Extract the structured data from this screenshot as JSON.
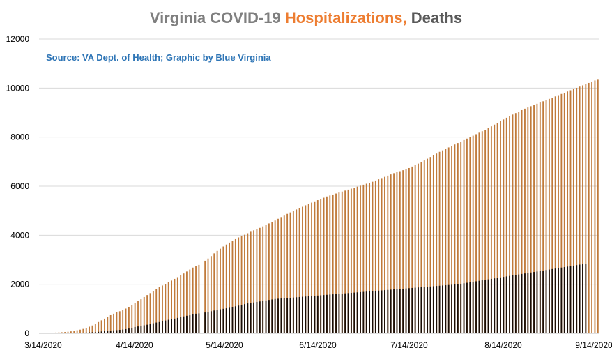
{
  "chart_data": {
    "type": "bar",
    "title_parts": [
      {
        "text": "Virginia COVID-19 ",
        "color": "#7f7f7f"
      },
      {
        "text": "Hospitalizations,",
        "color": "#ed7d31"
      },
      {
        "text": " Deaths",
        "color": "#595959"
      }
    ],
    "subtitle": "Source: VA Dept. of Health; Graphic by Blue Virginia",
    "subtitle_color": "#2e75b6",
    "ylim": [
      0,
      12000
    ],
    "yticks": [
      0,
      2000,
      4000,
      6000,
      8000,
      10000,
      12000
    ],
    "grid": true,
    "x_start": "3/14/2020",
    "x_end": "9/14/2020",
    "xtick_labels": [
      "3/14/2020",
      "4/14/2020",
      "5/14/2020",
      "6/14/2020",
      "7/14/2020",
      "8/14/2020",
      "9/14/2020"
    ],
    "series": [
      {
        "name": "Hospitalizations",
        "color": "#c07a3a",
        "values": [
          17,
          19,
          22,
          25,
          28,
          32,
          38,
          45,
          55,
          65,
          80,
          100,
          125,
          150,
          180,
          220,
          270,
          320,
          390,
          460,
          530,
          600,
          680,
          740,
          800,
          860,
          900,
          950,
          1010,
          1080,
          1150,
          1230,
          1310,
          1390,
          1480,
          1560,
          1640,
          1720,
          1800,
          1880,
          1950,
          2010,
          2080,
          2150,
          2220,
          2290,
          2360,
          2440,
          2520,
          2600,
          2680,
          2740,
          2790,
          0,
          2960,
          3050,
          3150,
          3260,
          3360,
          3450,
          3540,
          3620,
          3700,
          3770,
          3840,
          3910,
          3960,
          4020,
          4080,
          4140,
          4200,
          4250,
          4300,
          4360,
          4420,
          4480,
          4540,
          4600,
          4670,
          4740,
          4800,
          4870,
          4930,
          4990,
          5050,
          5110,
          5160,
          5220,
          5280,
          5330,
          5380,
          5430,
          5480,
          5530,
          5580,
          5620,
          5660,
          5700,
          5740,
          5780,
          5820,
          5860,
          5900,
          5940,
          5980,
          6020,
          6060,
          6100,
          6140,
          6180,
          6230,
          6280,
          6330,
          6380,
          6430,
          6480,
          6530,
          6570,
          6610,
          6650,
          6690,
          6740,
          6800,
          6860,
          6920,
          6980,
          7050,
          7120,
          7190,
          7260,
          7330,
          7400,
          7460,
          7520,
          7580,
          7640,
          7700,
          7760,
          7820,
          7880,
          7940,
          8000,
          8060,
          8120,
          8180,
          8240,
          8300,
          8370,
          8440,
          8510,
          8580,
          8650,
          8720,
          8790,
          8860,
          8920,
          8980,
          9040,
          9100,
          9160,
          9210,
          9260,
          9310,
          9360,
          9410,
          9460,
          9510,
          9560,
          9610,
          9660,
          9710,
          9760,
          9810,
          9860,
          9910,
          9960,
          10010,
          10060,
          10110,
          10160,
          10210,
          10260,
          10310,
          10340
        ]
      },
      {
        "name": "Deaths",
        "color": "#1a0d05",
        "values": [
          2,
          2,
          2,
          2,
          3,
          3,
          5,
          6,
          7,
          9,
          12,
          14,
          17,
          22,
          27,
          34,
          41,
          46,
          51,
          63,
          75,
          86,
          99,
          109,
          121,
          130,
          141,
          154,
          172,
          195,
          225,
          258,
          280,
          300,
          327,
          350,
          372,
          410,
          438,
          460,
          492,
          522,
          552,
          577,
          600,
          630,
          660,
          690,
          716,
          735,
          769,
          800,
          812,
          0,
          850,
          870,
          900,
          930,
          960,
          980,
          1000,
          1020,
          1040,
          1070,
          1100,
          1130,
          1160,
          1190,
          1220,
          1240,
          1260,
          1280,
          1300,
          1320,
          1340,
          1360,
          1380,
          1400,
          1410,
          1420,
          1430,
          1440,
          1450,
          1460,
          1470,
          1480,
          1490,
          1500,
          1510,
          1520,
          1530,
          1540,
          1550,
          1560,
          1570,
          1580,
          1590,
          1600,
          1610,
          1620,
          1630,
          1640,
          1650,
          1660,
          1670,
          1680,
          1690,
          1700,
          1710,
          1720,
          1730,
          1740,
          1750,
          1760,
          1770,
          1780,
          1790,
          1800,
          1810,
          1820,
          1830,
          1840,
          1850,
          1860,
          1870,
          1880,
          1890,
          1900,
          1910,
          1920,
          1930,
          1940,
          1950,
          1960,
          1970,
          1980,
          1990,
          2000,
          2020,
          2040,
          2060,
          2080,
          2100,
          2120,
          2140,
          2160,
          2180,
          2200,
          2220,
          2240,
          2260,
          2280,
          2300,
          2320,
          2340,
          2360,
          2380,
          2400,
          2420,
          2440,
          2460,
          2480,
          2500,
          2520,
          2540,
          2560,
          2580,
          2600,
          2620,
          2640,
          2660,
          2680,
          2700,
          2720,
          2740,
          2760,
          2780,
          2800,
          2820,
          2840
        ]
      }
    ]
  }
}
